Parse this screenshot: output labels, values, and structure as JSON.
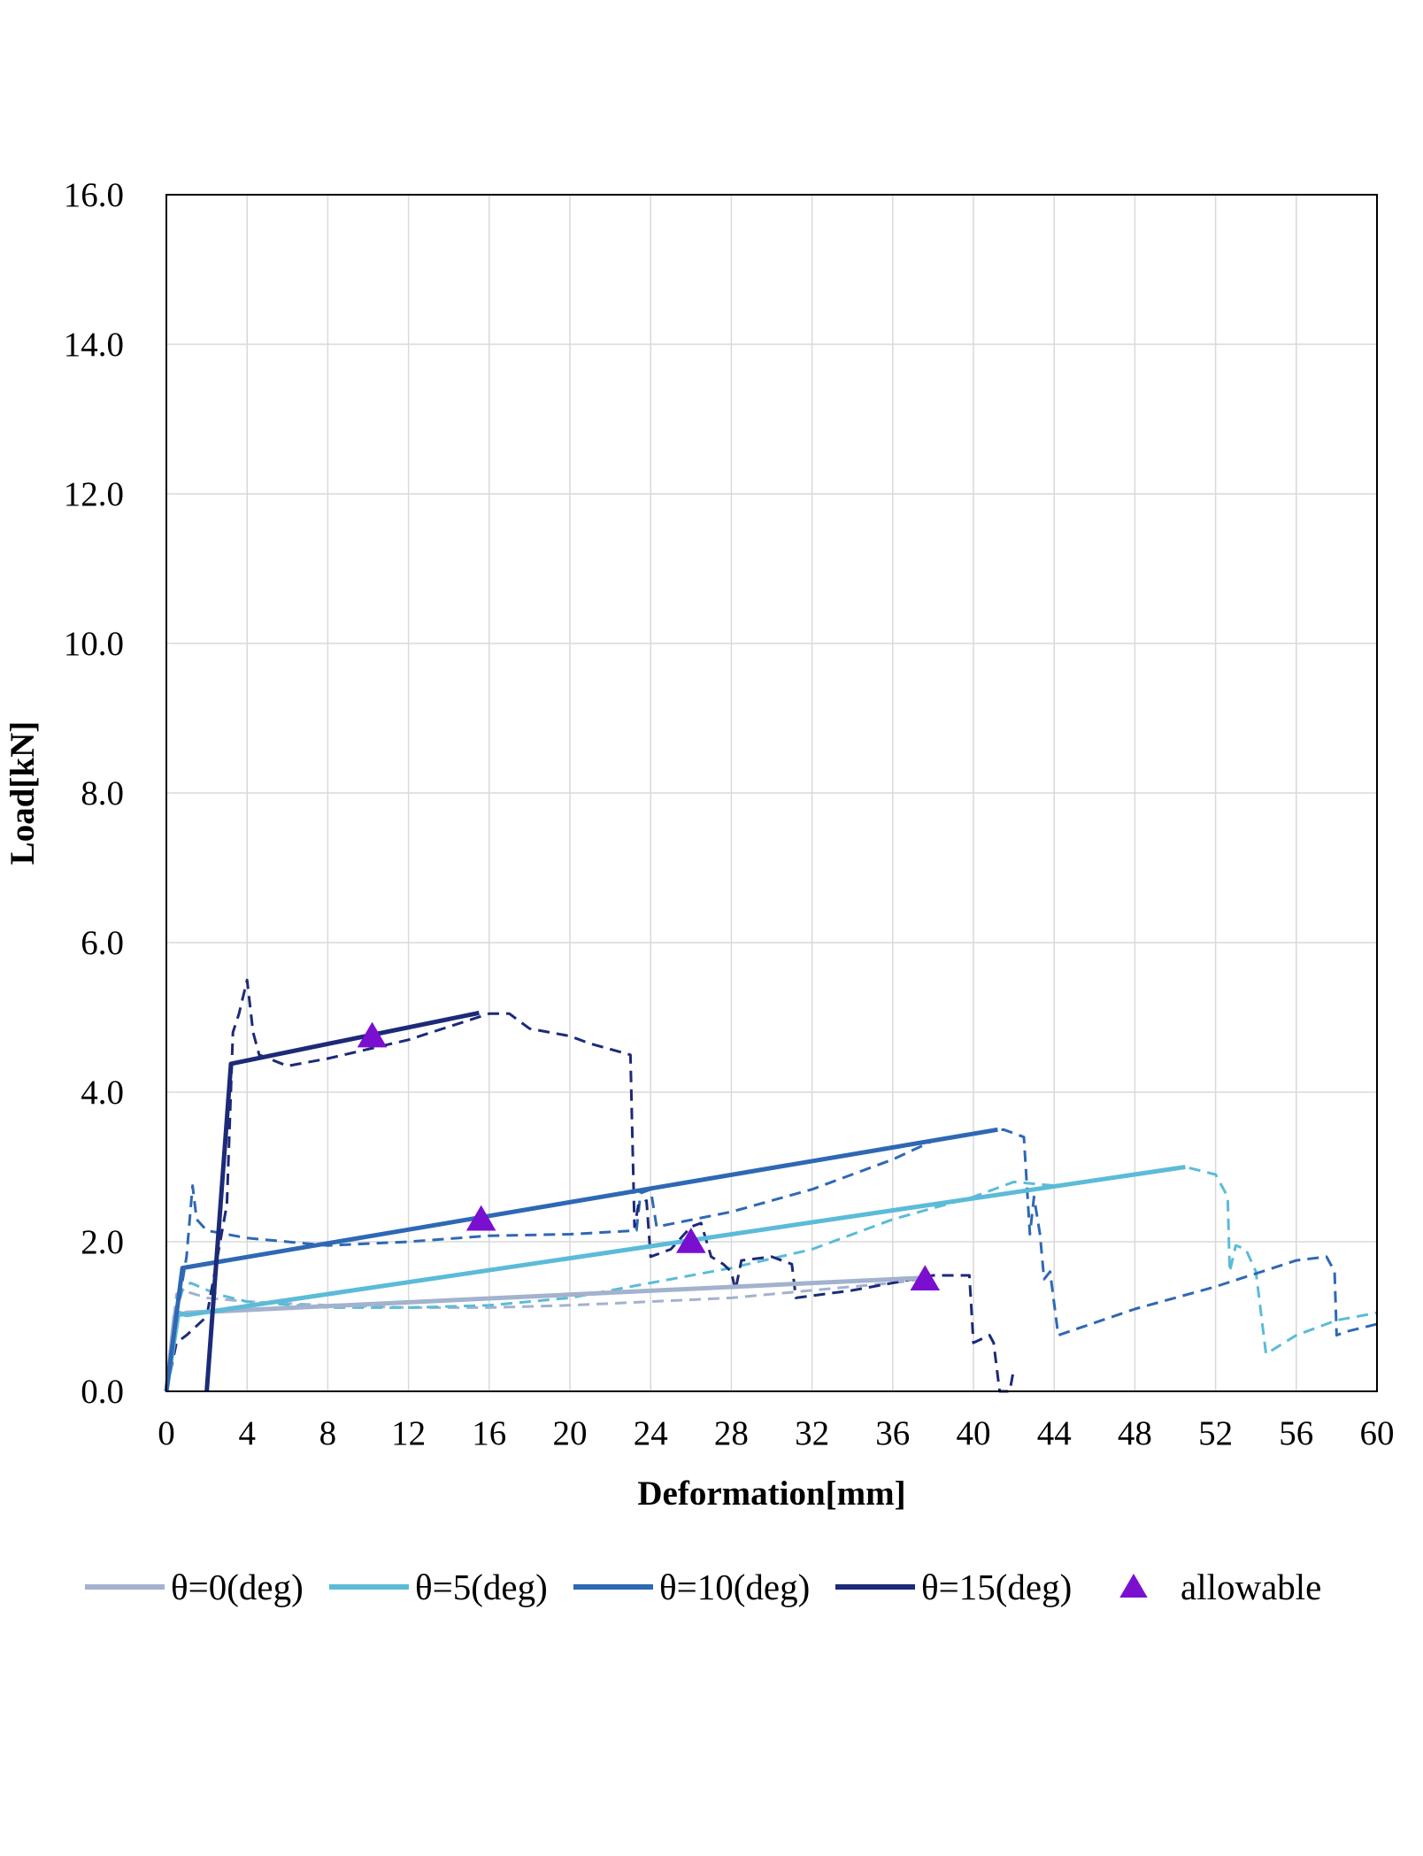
{
  "chart_data": {
    "type": "line",
    "title": "",
    "xlabel": "Deformation[mm]",
    "ylabel": "Load[kN]",
    "xlim": [
      0,
      60
    ],
    "ylim": [
      0,
      16
    ],
    "x_ticks": [
      "0",
      "4",
      "8",
      "12",
      "16",
      "20",
      "24",
      "28",
      "32",
      "36",
      "40",
      "44",
      "48",
      "52",
      "56",
      "60"
    ],
    "y_ticks": [
      "0.0",
      "2.0",
      "4.0",
      "6.0",
      "8.0",
      "10.0",
      "12.0",
      "14.0",
      "16.0"
    ],
    "grid": true,
    "legend_position": "bottom",
    "colors": {
      "theta0": "#a3b2cd",
      "theta5": "#5bbbd8",
      "theta10": "#2e68b5",
      "theta15": "#1c2a78",
      "allowable": "#7a0fd0"
    },
    "series": [
      {
        "name": "θ=0(deg)",
        "key": "theta0",
        "style": "solid",
        "points": [
          [
            0,
            0
          ],
          [
            0.4,
            1.0
          ],
          [
            1.0,
            1.05
          ],
          [
            37.6,
            1.52
          ]
        ]
      },
      {
        "name": "θ=5(deg)",
        "key": "theta5",
        "style": "solid",
        "points": [
          [
            0,
            0
          ],
          [
            0.6,
            1.05
          ],
          [
            1.0,
            1.02
          ],
          [
            50.5,
            3.0
          ]
        ]
      },
      {
        "name": "θ=10(deg)",
        "key": "theta10",
        "style": "solid",
        "points": [
          [
            0,
            0
          ],
          [
            0.8,
            1.65
          ],
          [
            41.2,
            3.5
          ]
        ]
      },
      {
        "name": "θ=15(deg)",
        "key": "theta15",
        "style": "solid",
        "points": [
          [
            2.0,
            0
          ],
          [
            3.2,
            4.38
          ],
          [
            15.5,
            5.06
          ]
        ]
      },
      {
        "name": "",
        "key": "theta0",
        "style": "dashed",
        "points": [
          [
            0,
            0
          ],
          [
            0.3,
            0.8
          ],
          [
            0.5,
            1.3
          ],
          [
            0.8,
            1.35
          ],
          [
            2.0,
            1.25
          ],
          [
            4.0,
            1.2
          ],
          [
            8.0,
            1.15
          ],
          [
            12.0,
            1.12
          ],
          [
            16.0,
            1.12
          ],
          [
            20.0,
            1.15
          ],
          [
            24.0,
            1.2
          ],
          [
            28.0,
            1.25
          ],
          [
            32.0,
            1.35
          ],
          [
            36.0,
            1.45
          ],
          [
            37.5,
            1.5
          ]
        ]
      },
      {
        "name": "",
        "key": "theta5",
        "style": "dashed",
        "points": [
          [
            0,
            0
          ],
          [
            0.4,
            1.0
          ],
          [
            0.8,
            1.35
          ],
          [
            1.2,
            1.45
          ],
          [
            2.5,
            1.3
          ],
          [
            4.0,
            1.2
          ],
          [
            8.0,
            1.12
          ],
          [
            12.0,
            1.12
          ],
          [
            16.0,
            1.15
          ],
          [
            20.0,
            1.25
          ],
          [
            24.0,
            1.45
          ],
          [
            28.0,
            1.65
          ],
          [
            32.0,
            1.9
          ],
          [
            36.0,
            2.3
          ],
          [
            40.0,
            2.6
          ],
          [
            42.0,
            2.8
          ],
          [
            44.0,
            2.75
          ],
          [
            48.0,
            2.9
          ],
          [
            50.5,
            3.0
          ],
          [
            52.0,
            2.9
          ],
          [
            52.6,
            2.6
          ],
          [
            52.7,
            1.6
          ],
          [
            53.0,
            1.95
          ],
          [
            53.5,
            1.9
          ],
          [
            54.0,
            1.6
          ],
          [
            54.5,
            0.5
          ],
          [
            56.0,
            0.75
          ],
          [
            58.0,
            0.95
          ],
          [
            60.0,
            1.05
          ]
        ]
      },
      {
        "name": "",
        "key": "theta10",
        "style": "dashed",
        "points": [
          [
            0,
            0
          ],
          [
            0.5,
            1.0
          ],
          [
            1.0,
            1.8
          ],
          [
            1.3,
            2.75
          ],
          [
            1.5,
            2.3
          ],
          [
            2.0,
            2.15
          ],
          [
            4.0,
            2.05
          ],
          [
            8.0,
            1.95
          ],
          [
            12.0,
            2.0
          ],
          [
            16.0,
            2.08
          ],
          [
            20.0,
            2.1
          ],
          [
            23.3,
            2.15
          ],
          [
            23.5,
            2.65
          ],
          [
            24.0,
            2.7
          ],
          [
            24.3,
            2.2
          ],
          [
            28.0,
            2.4
          ],
          [
            32.0,
            2.7
          ],
          [
            36.0,
            3.1
          ],
          [
            38.0,
            3.35
          ],
          [
            40.0,
            3.45
          ],
          [
            41.5,
            3.5
          ],
          [
            42.5,
            3.4
          ],
          [
            42.8,
            2.1
          ],
          [
            43.0,
            2.6
          ],
          [
            43.3,
            2.1
          ],
          [
            43.5,
            1.5
          ],
          [
            43.8,
            1.6
          ],
          [
            44.2,
            0.75
          ],
          [
            48.0,
            1.1
          ],
          [
            52.0,
            1.4
          ],
          [
            56.0,
            1.75
          ],
          [
            57.5,
            1.8
          ],
          [
            57.9,
            1.6
          ],
          [
            58.0,
            0.75
          ],
          [
            58.5,
            0.8
          ],
          [
            60.0,
            0.9
          ]
        ]
      },
      {
        "name": "",
        "key": "theta15",
        "style": "dashed",
        "points": [
          [
            0,
            0
          ],
          [
            0.5,
            0.65
          ],
          [
            1.0,
            0.75
          ],
          [
            2.0,
            1.0
          ],
          [
            3.0,
            2.5
          ],
          [
            3.3,
            4.8
          ],
          [
            3.6,
            5.05
          ],
          [
            4.0,
            5.5
          ],
          [
            4.3,
            4.8
          ],
          [
            4.6,
            4.5
          ],
          [
            6.0,
            4.35
          ],
          [
            8.0,
            4.45
          ],
          [
            12.0,
            4.7
          ],
          [
            16.0,
            5.05
          ],
          [
            17.0,
            5.05
          ],
          [
            18.0,
            4.85
          ],
          [
            20.0,
            4.75
          ],
          [
            21.0,
            4.65
          ],
          [
            23.0,
            4.5
          ],
          [
            23.2,
            2.2
          ],
          [
            23.4,
            2.5
          ],
          [
            23.8,
            2.55
          ],
          [
            24.0,
            1.8
          ],
          [
            25.0,
            1.9
          ],
          [
            26.0,
            2.2
          ],
          [
            26.5,
            2.25
          ],
          [
            27.0,
            1.8
          ],
          [
            27.6,
            1.7
          ],
          [
            28.0,
            1.6
          ],
          [
            28.2,
            1.35
          ],
          [
            28.5,
            1.75
          ],
          [
            30.0,
            1.8
          ],
          [
            31.0,
            1.7
          ],
          [
            31.2,
            1.25
          ],
          [
            34.0,
            1.35
          ],
          [
            36.0,
            1.45
          ],
          [
            38.0,
            1.55
          ],
          [
            39.8,
            1.55
          ],
          [
            40.0,
            0.65
          ],
          [
            40.8,
            0.75
          ],
          [
            41.0,
            0.65
          ],
          [
            41.3,
            0
          ],
          [
            41.8,
            0
          ],
          [
            42.0,
            0.3
          ]
        ]
      }
    ],
    "allowable": {
      "name": "allowable",
      "points": [
        [
          10.2,
          4.75
        ],
        [
          15.6,
          2.3
        ],
        [
          26.0,
          2.0
        ],
        [
          37.6,
          1.5
        ]
      ]
    }
  }
}
